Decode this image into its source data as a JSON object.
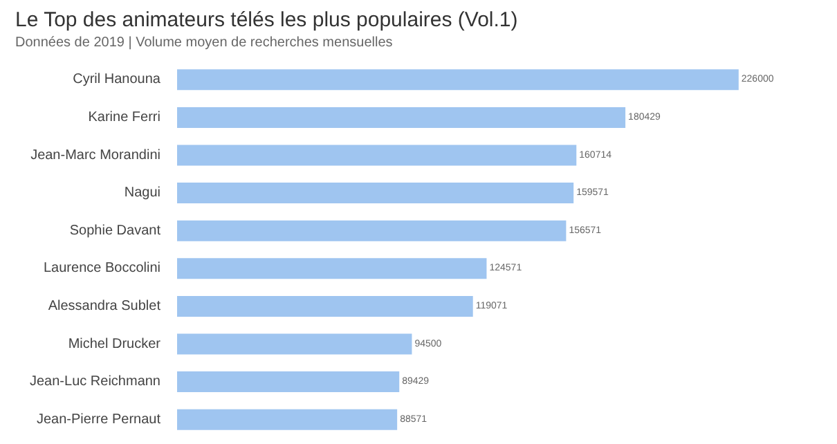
{
  "chart_data": {
    "type": "bar",
    "orientation": "horizontal",
    "title": "Le Top des animateurs télés les plus populaires (Vol.1)",
    "subtitle": "Données de 2019 | Volume moyen de recherches mensuelles",
    "categories": [
      "Cyril Hanouna",
      "Karine Ferri",
      "Jean-Marc Morandini",
      "Nagui",
      "Sophie Davant",
      "Laurence Boccolini",
      "Alessandra Sublet",
      "Michel Drucker",
      "Jean-Luc Reichmann",
      "Jean-Pierre Pernaut"
    ],
    "values": [
      226000,
      180429,
      160714,
      159571,
      156571,
      124571,
      119071,
      94500,
      89429,
      88571
    ],
    "color": "#9fc5f0",
    "data_labels": true,
    "tick_labels": "y"
  }
}
